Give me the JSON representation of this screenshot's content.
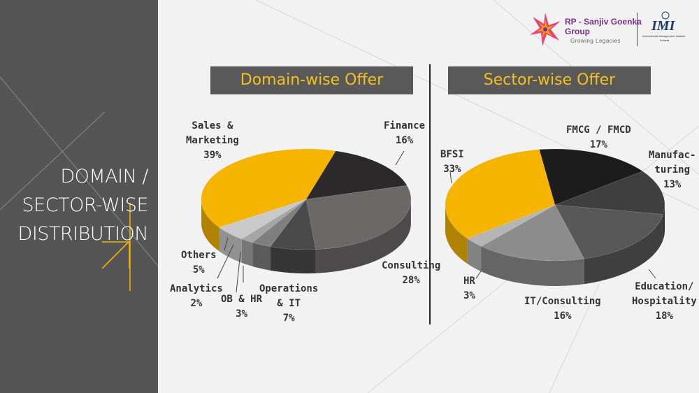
{
  "slide": {
    "title_lines": [
      "DOMAIN /",
      "SECTOR-WISE",
      "DISTRIBUTION"
    ]
  },
  "logo": {
    "brand_line1": "RP - Sanjiv Goenka",
    "brand_line2": "Group",
    "tagline": "Growing Legacies",
    "institute_mark": "IMI",
    "institute_name": "International Management Institute",
    "institute_city": "Kolkata"
  },
  "colors": {
    "accent_yellow": "#f4b400",
    "banner_bg": "#595959",
    "banner_text": "#f4c020",
    "left_panel": "#555555",
    "background": "#f2f2f2"
  },
  "chart_data": [
    {
      "type": "pie",
      "title": "Domain-wise Offer",
      "slices": [
        {
          "label": "Sales & Marketing",
          "value": 39,
          "color": "#f4b400"
        },
        {
          "label": "Finance",
          "value": 16,
          "color": "#2b2929"
        },
        {
          "label": "Consulting",
          "value": 28,
          "color": "#6b6868"
        },
        {
          "label": "Operations & IT",
          "value": 7,
          "color": "#4a4a4a"
        },
        {
          "label": "OB & HR",
          "value": 3,
          "color": "#7f7f7f"
        },
        {
          "label": "Analytics",
          "value": 2,
          "color": "#a5a5a5"
        },
        {
          "label": "Others",
          "value": 5,
          "color": "#c9c9c9"
        }
      ],
      "labels": {
        "sales": [
          "Sales &",
          "Marketing",
          "39%"
        ],
        "finance": [
          "Finance",
          "16%"
        ],
        "consulting": [
          "Consulting",
          "28%"
        ],
        "operations": [
          "Operations",
          "& IT",
          "7%"
        ],
        "obhr": [
          "OB & HR",
          "3%"
        ],
        "analytics": [
          "Analytics",
          "2%"
        ],
        "others": [
          "Others",
          "5%"
        ]
      }
    },
    {
      "type": "pie",
      "title": "Sector-wise Offer",
      "slices": [
        {
          "label": "BFSI",
          "value": 33,
          "color": "#f4b400"
        },
        {
          "label": "FMCG / FMCD",
          "value": 17,
          "color": "#1c1c1c"
        },
        {
          "label": "Manufacturing",
          "value": 13,
          "color": "#3f3f3f"
        },
        {
          "label": "Education/ Hospitality",
          "value": 18,
          "color": "#585858"
        },
        {
          "label": "IT/Consulting",
          "value": 16,
          "color": "#8c8c8c"
        },
        {
          "label": "HR",
          "value": 3,
          "color": "#b5b5b5"
        }
      ],
      "labels": {
        "bfsi": [
          "BFSI",
          "33%"
        ],
        "fmcg": [
          "FMCG / FMCD",
          "17%"
        ],
        "manuf": [
          "Manufac-",
          "turing",
          "13%"
        ],
        "edu": [
          "Education/",
          "Hospitality",
          "18%"
        ],
        "it": [
          "IT/Consulting",
          "16%"
        ],
        "hr": [
          "HR",
          "3%"
        ]
      }
    }
  ]
}
